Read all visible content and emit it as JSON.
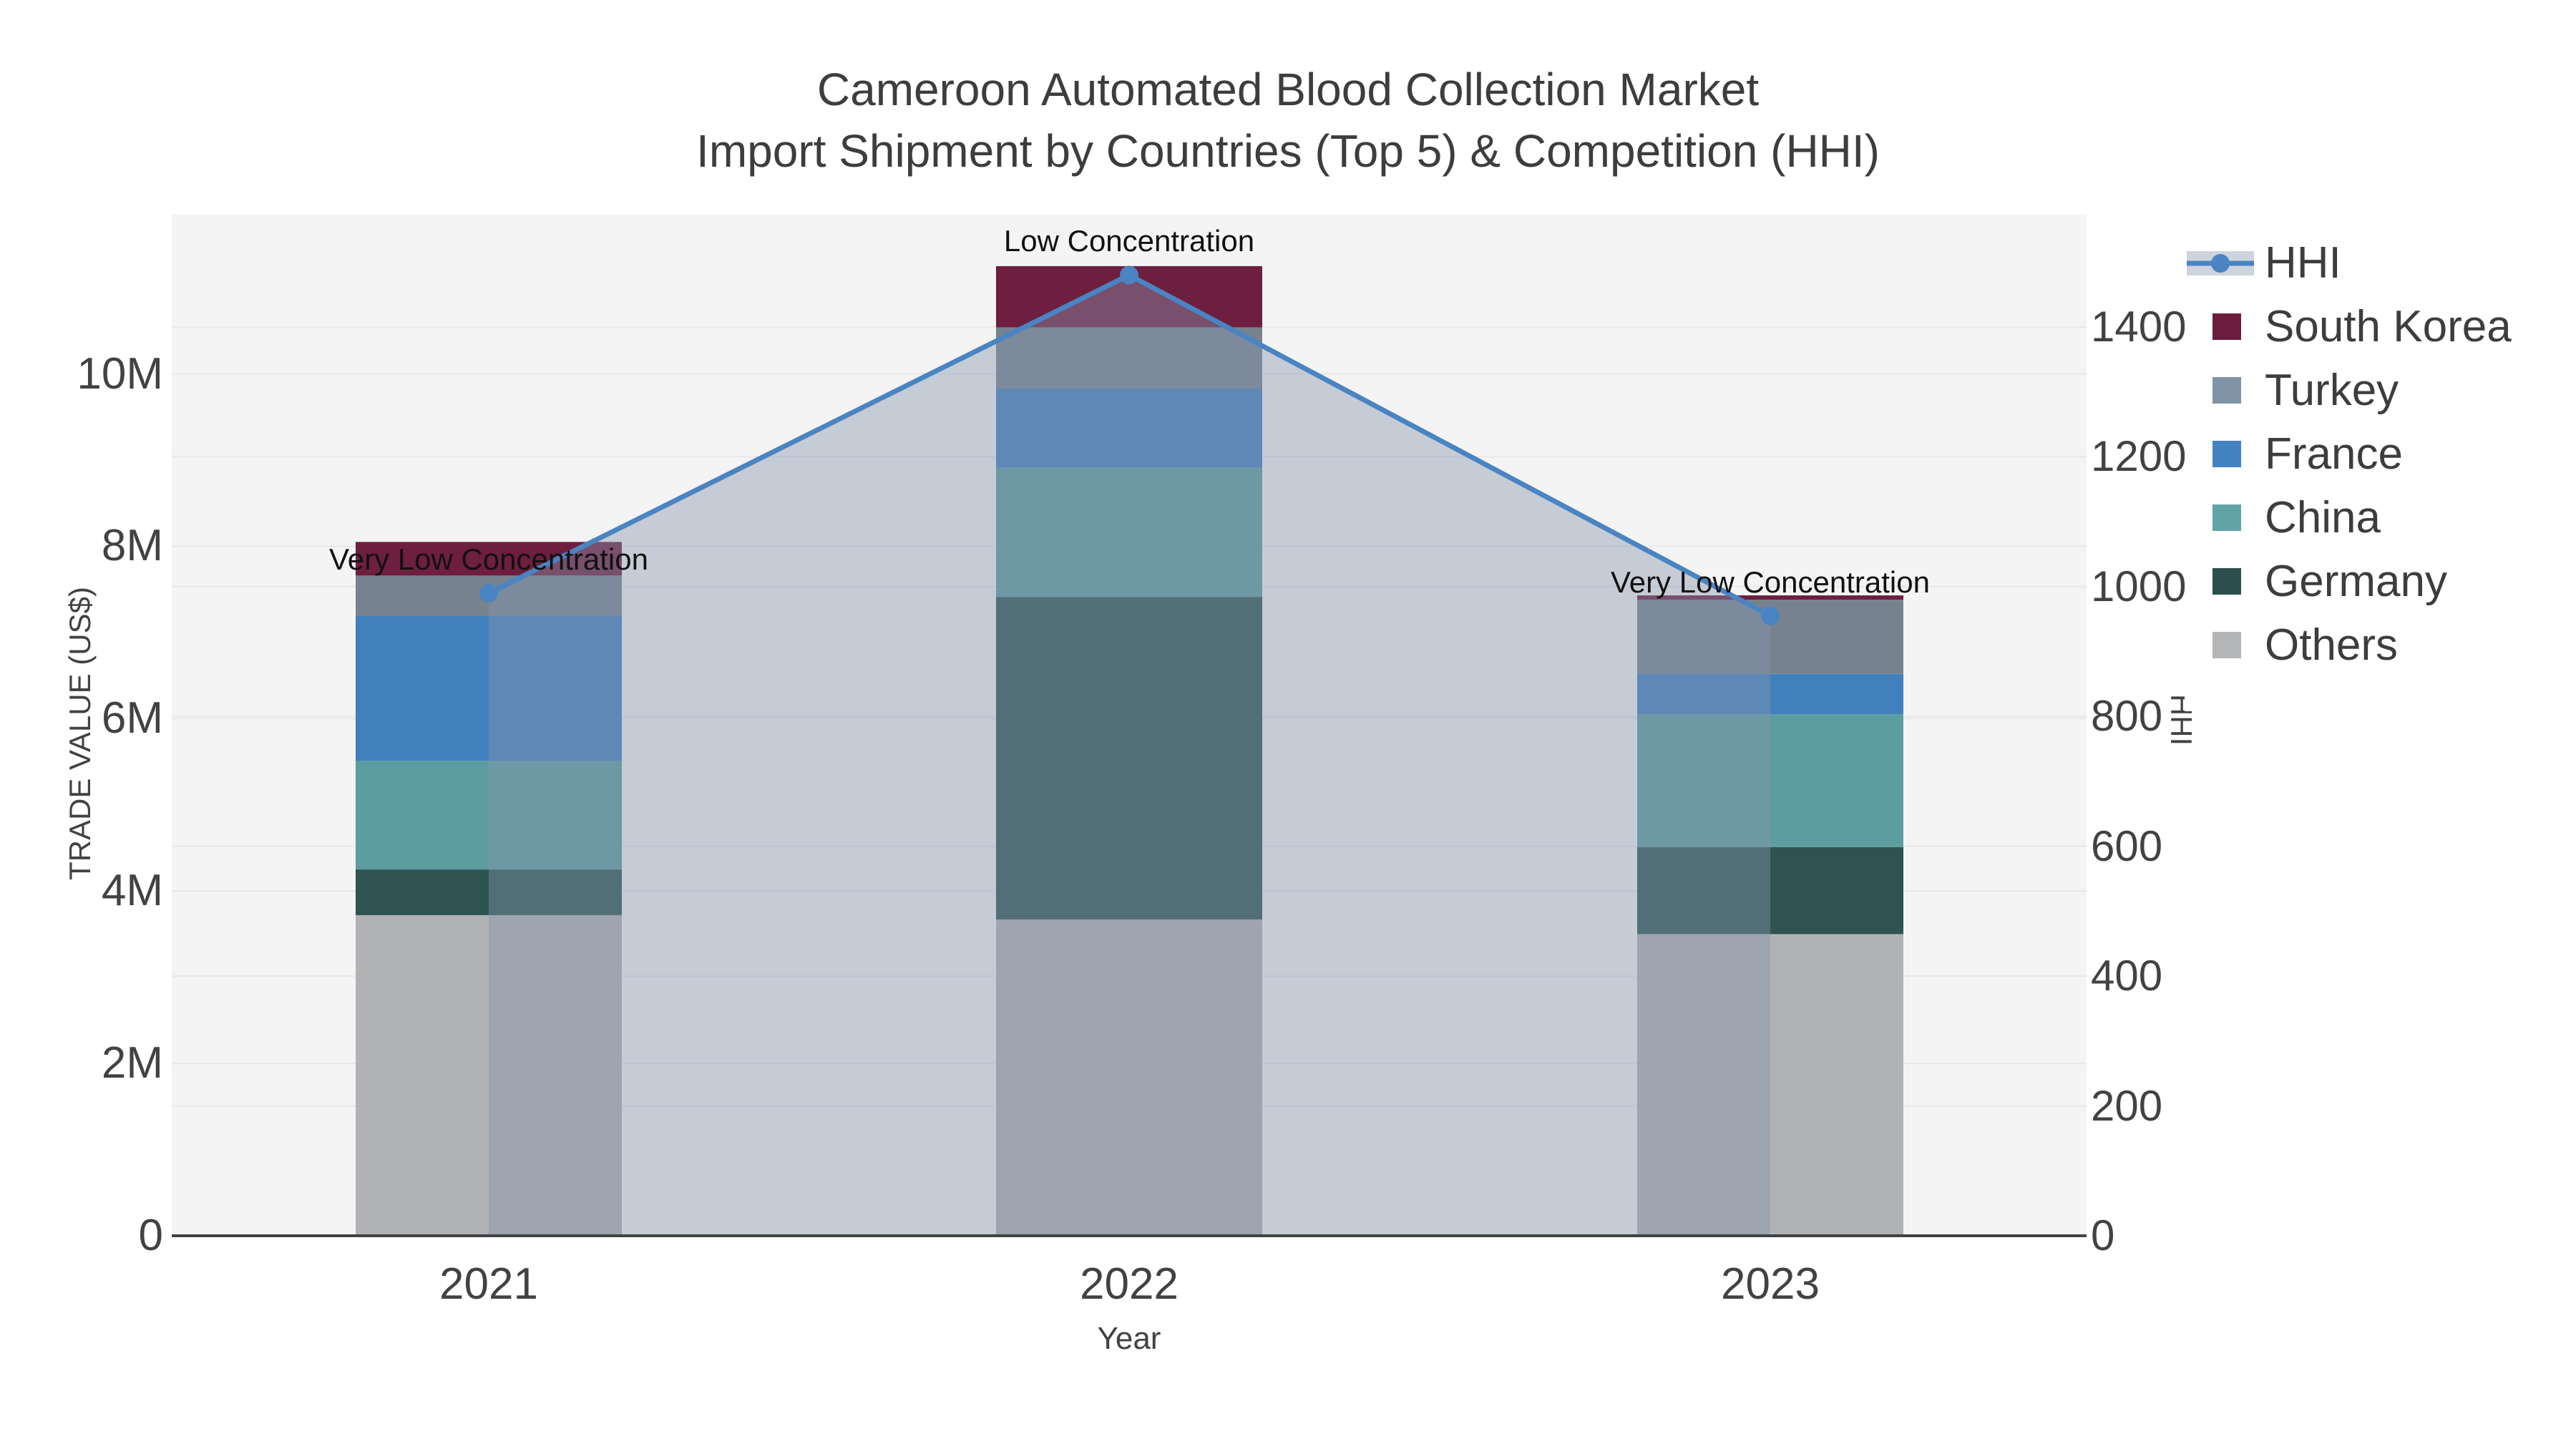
{
  "title": {
    "line1": "Cameroon Automated Blood Collection Market",
    "line2": "Import Shipment by Countries (Top 5) & Competition (HHI)"
  },
  "chart_data": {
    "type": "bar",
    "subtype": "stacked-bar-with-line",
    "x": [
      "2021",
      "2022",
      "2023"
    ],
    "x_axis": {
      "title": "Year",
      "labels": [
        "2021",
        "2022",
        "2023"
      ]
    },
    "y_left": {
      "title": "TRADE VALUE (US$)",
      "ticks": [
        "0",
        "2M",
        "4M",
        "6M",
        "8M",
        "10M"
      ],
      "tick_values": [
        0,
        2,
        4,
        6,
        8,
        10
      ],
      "max_value_m": 11.85,
      "grid": true
    },
    "y_right": {
      "title": "HHI",
      "ticks": [
        "0",
        "200",
        "400",
        "600",
        "800",
        "1000",
        "1200",
        "1400"
      ],
      "tick_values": [
        0,
        200,
        400,
        600,
        800,
        1000,
        1200,
        1400
      ],
      "max_value": 1573,
      "grid": true
    },
    "bar_series": [
      {
        "name": "Others",
        "bar_color": "#b0b2b4",
        "values_musd": [
          3.72,
          3.67,
          3.5
        ]
      },
      {
        "name": "Germany",
        "bar_color": "#2e5351",
        "values_musd": [
          0.53,
          3.74,
          1.01
        ]
      },
      {
        "name": "China",
        "bar_color": "#5c9ea0",
        "values_musd": [
          1.26,
          1.5,
          1.54
        ]
      },
      {
        "name": "France",
        "bar_color": "#4280bd",
        "values_musd": [
          1.68,
          0.92,
          0.47
        ]
      },
      {
        "name": "Turkey",
        "bar_color": "#76838f",
        "values_musd": [
          0.47,
          0.71,
          0.86
        ]
      },
      {
        "name": "South Korea",
        "bar_color": "#6e1e3e",
        "values_musd": [
          0.39,
          0.71,
          0.05
        ]
      }
    ],
    "bar_totals_musd": [
      8.05,
      11.25,
      7.43
    ],
    "line_series": {
      "name": "HHI",
      "values": [
        990,
        1480,
        955
      ],
      "line_color": "#4a84c2",
      "marker_color": "#4a84c2",
      "area_fill_color": "rgba(133,148,172,0.42)"
    },
    "annotations": [
      "Very Low Concentration",
      "Low Concentration",
      "Very Low Concentration"
    ],
    "colors": {
      "plot_background": "#f4f4f4",
      "gridline": "#e6e8ea",
      "axis_line": "#424242",
      "tick_text": "#424242",
      "title_text": "#3d3d3d",
      "annotation_text": "#111111"
    },
    "legend_position": "right"
  },
  "legend": {
    "items": [
      {
        "label": "HHI",
        "type": "line",
        "color": "#4a84c2"
      },
      {
        "label": "South Korea",
        "type": "swatch",
        "color": "#6c1d3d"
      },
      {
        "label": "Turkey",
        "type": "swatch",
        "color": "#8093a7"
      },
      {
        "label": "France",
        "type": "swatch",
        "color": "#4483c2"
      },
      {
        "label": "China",
        "type": "swatch",
        "color": "#62a4a6"
      },
      {
        "label": "Germany",
        "type": "swatch",
        "color": "#2b4f4a"
      },
      {
        "label": "Others",
        "type": "swatch",
        "color": "#b3b5b7"
      }
    ]
  }
}
